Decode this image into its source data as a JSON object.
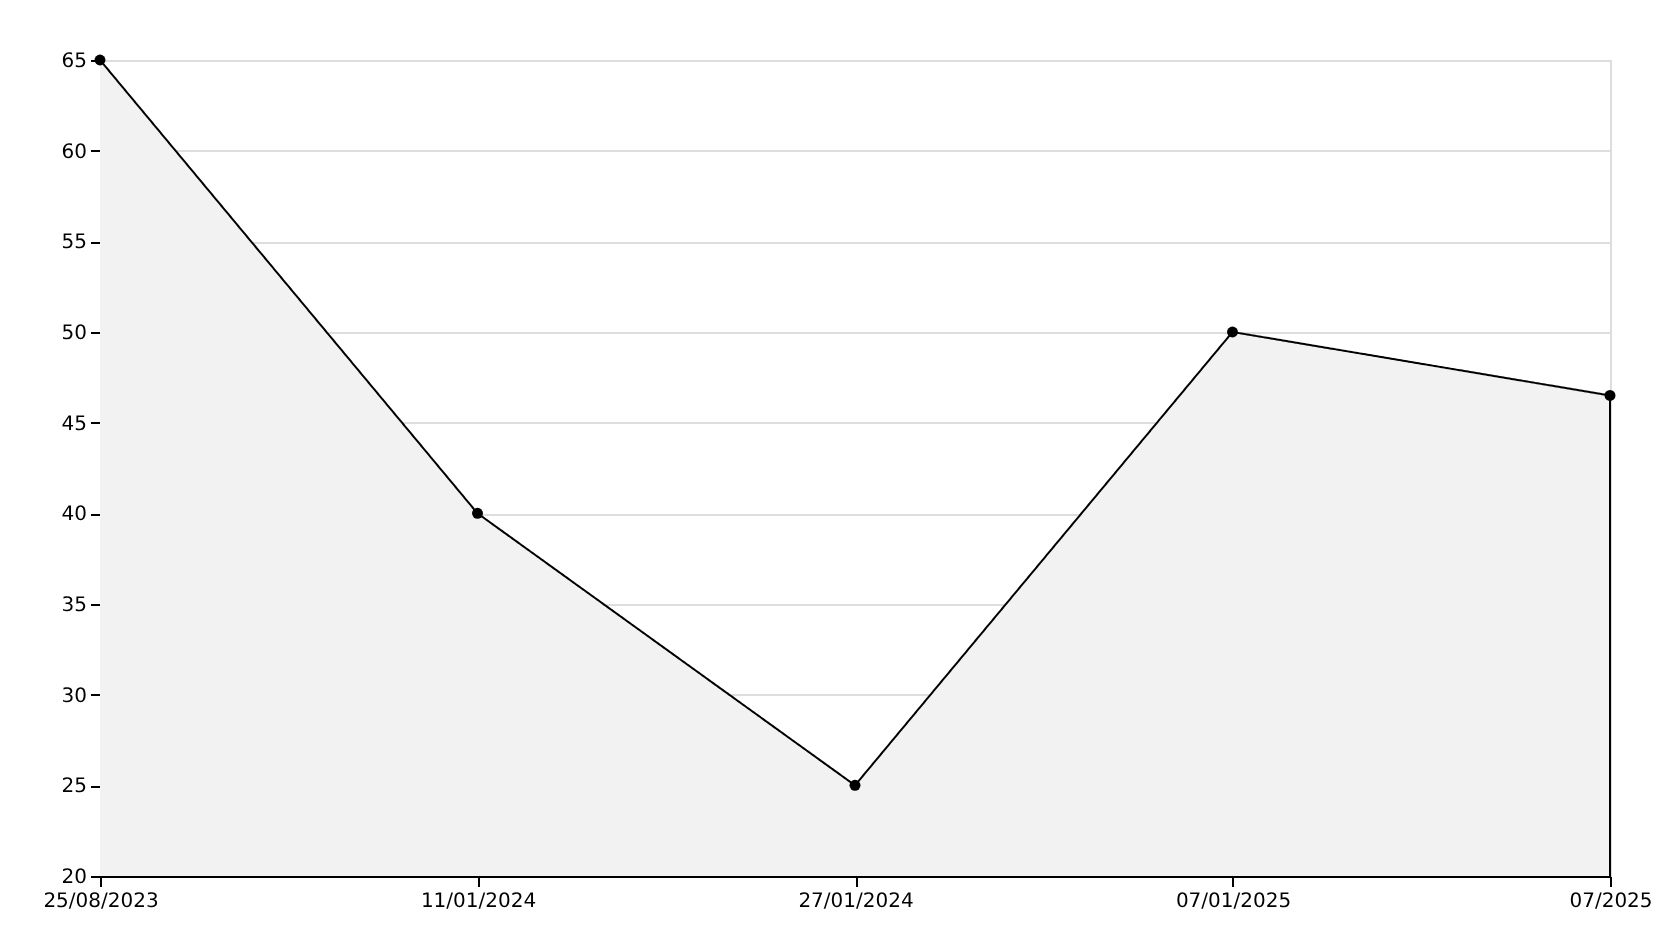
{
  "chart_data": {
    "type": "area",
    "categories": [
      "25/08/2023",
      "11/01/2024",
      "27/01/2024",
      "07/01/2025",
      "07/2025"
    ],
    "series": [
      {
        "color": "#000000",
        "values": [
          65,
          40,
          25,
          50,
          46.5
        ]
      }
    ],
    "ylim": [
      20,
      65
    ],
    "yticks": [
      20,
      25,
      30,
      35,
      40,
      45,
      50,
      55,
      60,
      65
    ],
    "grid": "y",
    "marker": "circle",
    "line_style": "solid"
  }
}
